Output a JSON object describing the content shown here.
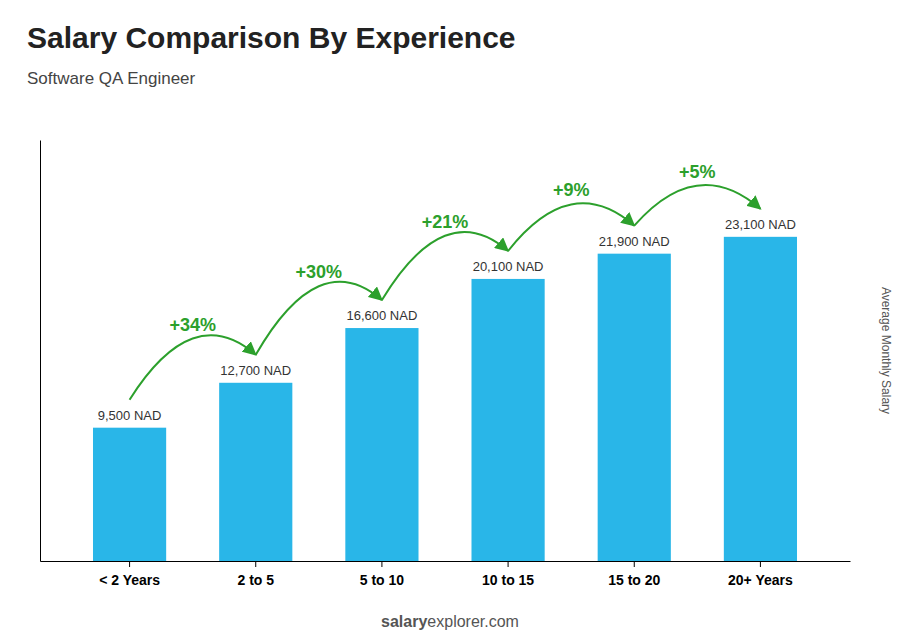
{
  "chart_data": {
    "type": "bar",
    "title": "Salary Comparison By Experience",
    "subtitle": "Software QA Engineer",
    "ylabel": "Average Monthly Salary",
    "categories": [
      "< 2 Years",
      "2 to 5",
      "5 to 10",
      "10 to 15",
      "15 to 20",
      "20+ Years"
    ],
    "values": [
      9500,
      12700,
      16600,
      20100,
      21900,
      23100
    ],
    "value_labels": [
      "9,500 NAD",
      "12,700 NAD",
      "16,600 NAD",
      "20,100 NAD",
      "21,900 NAD",
      "23,100 NAD"
    ],
    "data_labels": true,
    "annotations": [
      "+34%",
      "+30%",
      "+21%",
      "+9%",
      "+5%"
    ],
    "watermark": [
      "salary",
      "explorer.com"
    ],
    "color": "#29b6e8",
    "ylim": [
      0,
      30000
    ],
    "grid": false,
    "tick_labels": "x"
  }
}
